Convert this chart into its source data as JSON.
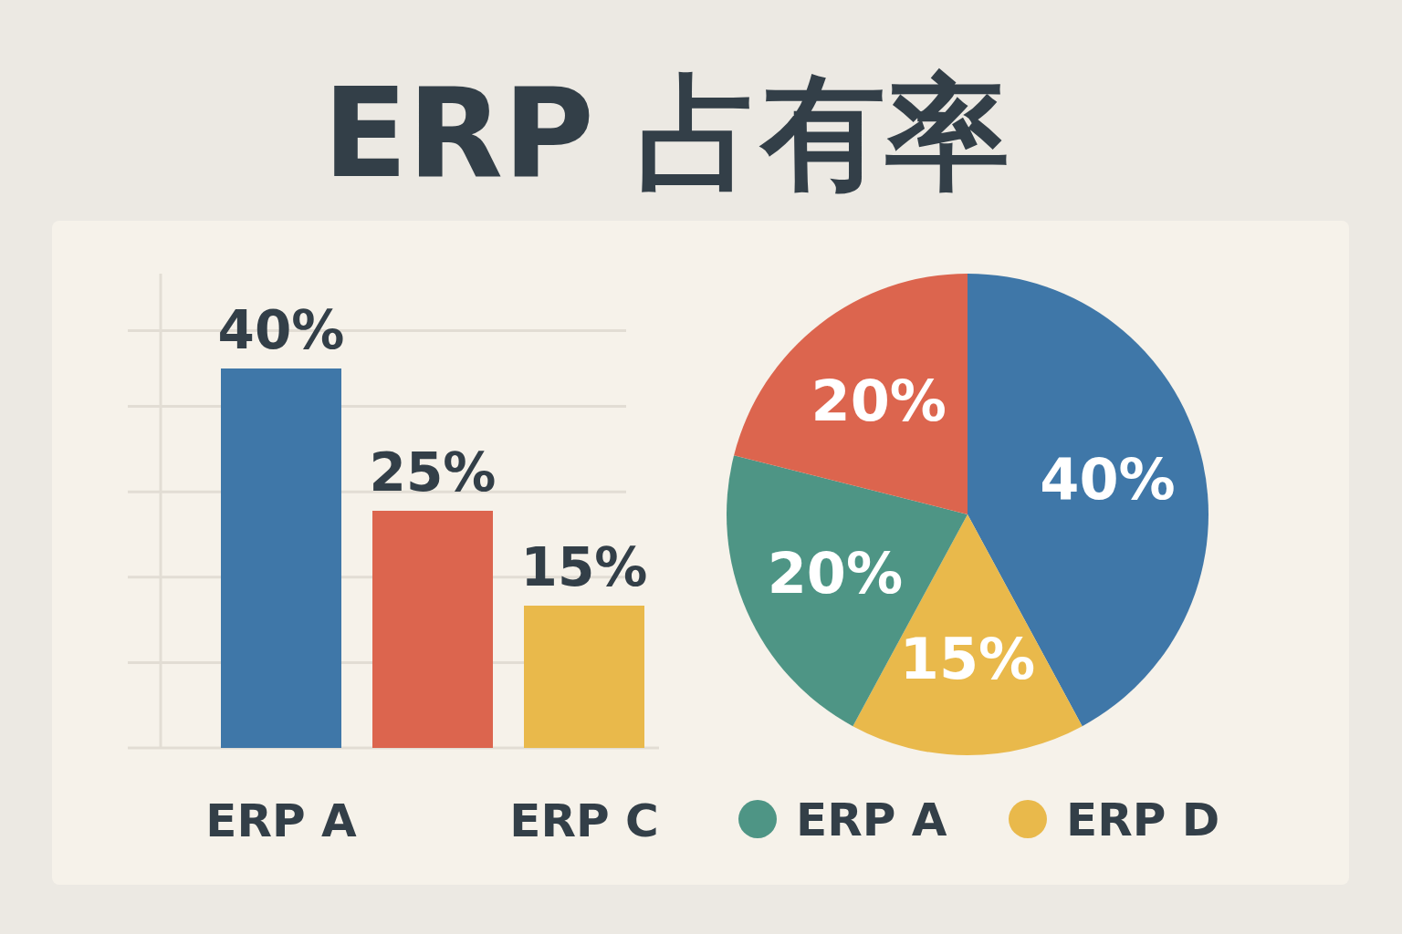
{
  "chart_data": [
    {
      "type": "bar",
      "title": "ERP 占有率",
      "categories": [
        "ERP A",
        null,
        "ERP C"
      ],
      "values": [
        40,
        25,
        15
      ],
      "value_labels": [
        "40%",
        "25%",
        "15%"
      ],
      "colors": [
        "#3f77a8",
        "#dc654e",
        "#e9b94b"
      ],
      "ylim": [
        0,
        50
      ],
      "yticks": [
        {
          "value": 9,
          "label": null
        },
        {
          "value": 18,
          "label": null
        },
        {
          "value": 27,
          "label": null
        },
        {
          "value": 36,
          "label": null
        },
        {
          "value": 44,
          "label": null
        }
      ],
      "grid": "y"
    },
    {
      "type": "pie",
      "categories": [
        null,
        "ERP D",
        "ERP A",
        null
      ],
      "values": [
        40,
        15,
        20,
        20
      ],
      "value_labels": [
        "40%",
        "15%",
        "20%",
        "20%"
      ],
      "colors": [
        "#3f77a8",
        "#e9b94b",
        "#4e9585",
        "#dc654e"
      ],
      "legend": "bottom"
    }
  ]
}
